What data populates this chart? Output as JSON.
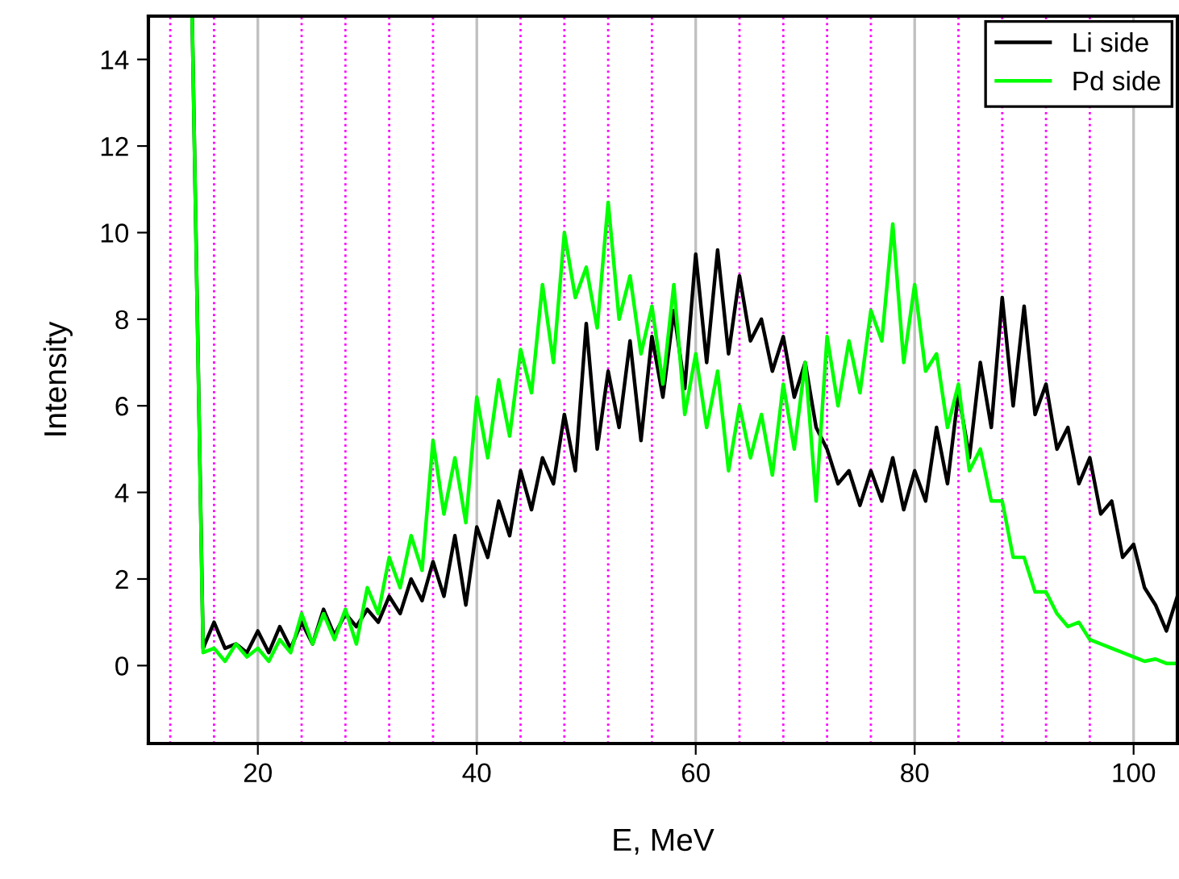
{
  "chart_data": {
    "type": "line",
    "xlabel": "E, MeV",
    "ylabel": "Intensity",
    "xlim": [
      10,
      104
    ],
    "ylim": [
      -1.8,
      15
    ],
    "xticks": [
      20,
      40,
      60,
      80,
      100
    ],
    "yticks": [
      0,
      2,
      4,
      6,
      8,
      10,
      12,
      14
    ],
    "grid": "x",
    "legend": "top right",
    "line_style": "solid",
    "marker": "none",
    "ref_lines": [
      {
        "axis": "x",
        "value": 12,
        "color": "#ff00ff",
        "line_style": "dotted"
      },
      {
        "axis": "x",
        "value": 16,
        "color": "#ff00ff",
        "line_style": "dotted"
      },
      {
        "axis": "x",
        "value": 24,
        "color": "#ff00ff",
        "line_style": "dotted"
      },
      {
        "axis": "x",
        "value": 28,
        "color": "#ff00ff",
        "line_style": "dotted"
      },
      {
        "axis": "x",
        "value": 32,
        "color": "#ff00ff",
        "line_style": "dotted"
      },
      {
        "axis": "x",
        "value": 36,
        "color": "#ff00ff",
        "line_style": "dotted"
      },
      {
        "axis": "x",
        "value": 44,
        "color": "#ff00ff",
        "line_style": "dotted"
      },
      {
        "axis": "x",
        "value": 48,
        "color": "#ff00ff",
        "line_style": "dotted"
      },
      {
        "axis": "x",
        "value": 52,
        "color": "#ff00ff",
        "line_style": "dotted"
      },
      {
        "axis": "x",
        "value": 56,
        "color": "#ff00ff",
        "line_style": "dotted"
      },
      {
        "axis": "x",
        "value": 64,
        "color": "#ff00ff",
        "line_style": "dotted"
      },
      {
        "axis": "x",
        "value": 68,
        "color": "#ff00ff",
        "line_style": "dotted"
      },
      {
        "axis": "x",
        "value": 72,
        "color": "#ff00ff",
        "line_style": "dotted"
      },
      {
        "axis": "x",
        "value": 76,
        "color": "#ff00ff",
        "line_style": "dotted"
      },
      {
        "axis": "x",
        "value": 84,
        "color": "#ff00ff",
        "line_style": "dotted"
      },
      {
        "axis": "x",
        "value": 88,
        "color": "#ff00ff",
        "line_style": "dotted"
      },
      {
        "axis": "x",
        "value": 92,
        "color": "#ff00ff",
        "line_style": "dotted"
      },
      {
        "axis": "x",
        "value": 96,
        "color": "#ff00ff",
        "line_style": "dotted"
      }
    ],
    "x": [
      14,
      15,
      16,
      17,
      18,
      19,
      20,
      21,
      22,
      23,
      24,
      25,
      26,
      27,
      28,
      29,
      30,
      31,
      32,
      33,
      34,
      35,
      36,
      37,
      38,
      39,
      40,
      41,
      42,
      43,
      44,
      45,
      46,
      47,
      48,
      49,
      50,
      51,
      52,
      53,
      54,
      55,
      56,
      57,
      58,
      59,
      60,
      61,
      62,
      63,
      64,
      65,
      66,
      67,
      68,
      69,
      70,
      71,
      72,
      73,
      74,
      75,
      76,
      77,
      78,
      79,
      80,
      81,
      82,
      83,
      84,
      85,
      86,
      87,
      88,
      89,
      90,
      91,
      92,
      93,
      94,
      95,
      96,
      97,
      98,
      99,
      100,
      101,
      102,
      103,
      104
    ],
    "series": [
      {
        "name": "Li side",
        "color": "#000000",
        "values": [
          15,
          0.4,
          1.0,
          0.4,
          0.5,
          0.3,
          0.8,
          0.3,
          0.9,
          0.4,
          1.0,
          0.5,
          1.3,
          0.7,
          1.2,
          0.9,
          1.3,
          1.0,
          1.6,
          1.2,
          2.0,
          1.5,
          2.4,
          1.6,
          3.0,
          1.4,
          3.2,
          2.5,
          3.8,
          3.0,
          4.5,
          3.6,
          4.8,
          4.2,
          5.8,
          4.5,
          7.9,
          5.0,
          6.8,
          5.5,
          7.5,
          5.2,
          7.6,
          6.2,
          8.2,
          6.4,
          9.5,
          7.0,
          9.6,
          7.2,
          9.0,
          7.5,
          8.0,
          6.8,
          7.6,
          6.2,
          7.0,
          5.5,
          5.0,
          4.2,
          4.5,
          3.7,
          4.5,
          3.8,
          4.8,
          3.6,
          4.5,
          3.8,
          5.5,
          4.2,
          6.3,
          4.8,
          7.0,
          5.5,
          8.5,
          6.0,
          8.3,
          5.8,
          6.5,
          5.0,
          5.5,
          4.2,
          4.8,
          3.5,
          3.8,
          2.5,
          2.8,
          1.8,
          1.4,
          0.8,
          1.6
        ]
      },
      {
        "name": "Pd side",
        "color": "#00ff00",
        "values": [
          15,
          0.3,
          0.4,
          0.1,
          0.5,
          0.2,
          0.4,
          0.1,
          0.6,
          0.3,
          1.2,
          0.5,
          1.2,
          0.6,
          1.3,
          0.5,
          1.8,
          1.2,
          2.5,
          1.8,
          3.0,
          2.2,
          5.2,
          3.5,
          4.8,
          3.3,
          6.2,
          4.8,
          6.6,
          5.3,
          7.3,
          6.3,
          8.8,
          7.0,
          10.0,
          8.5,
          9.2,
          7.8,
          10.7,
          8.0,
          9.0,
          7.2,
          8.3,
          6.5,
          8.8,
          5.8,
          7.2,
          5.5,
          6.8,
          4.5,
          6.0,
          4.8,
          5.8,
          4.4,
          6.5,
          5.0,
          7.0,
          3.8,
          7.6,
          6.0,
          7.5,
          6.3,
          8.2,
          7.5,
          10.2,
          7.0,
          8.8,
          6.8,
          7.2,
          5.5,
          6.5,
          4.5,
          5.0,
          3.8,
          3.8,
          2.5,
          2.5,
          1.7,
          1.7,
          1.2,
          0.9,
          1.0,
          0.6,
          0.5,
          0.4,
          0.3,
          0.2,
          0.1,
          0.15,
          0.05,
          0.05
        ]
      }
    ]
  }
}
